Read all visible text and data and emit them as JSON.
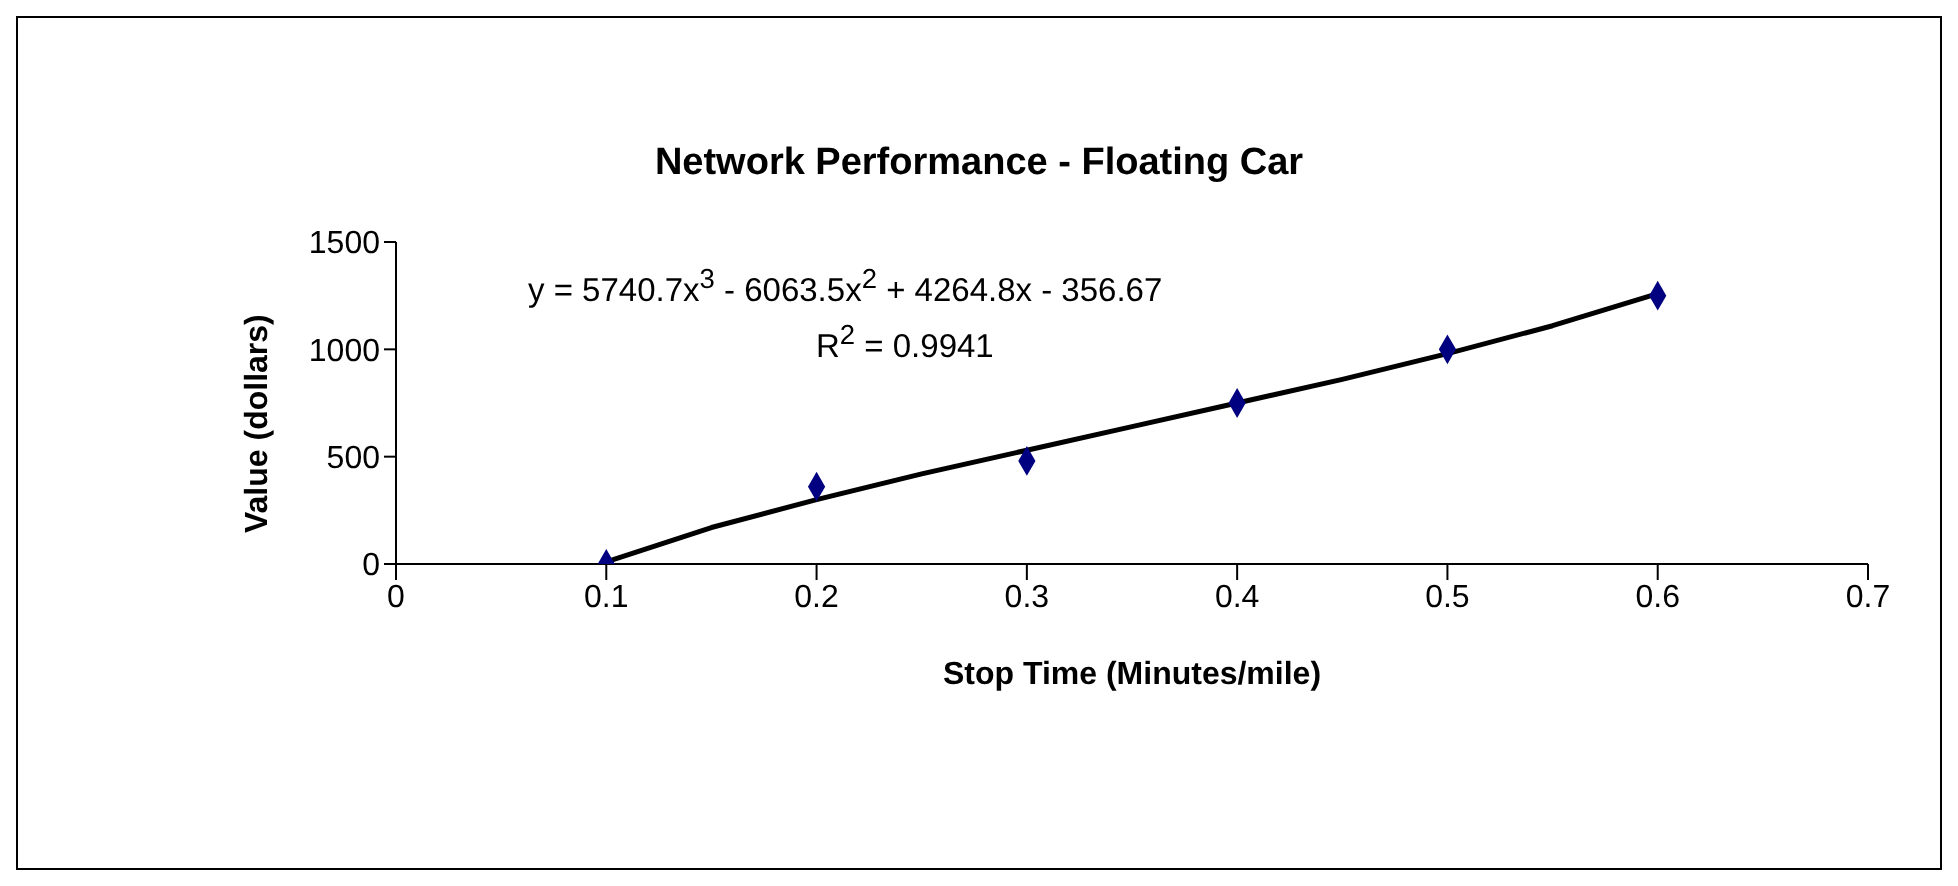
{
  "chart_data": {
    "type": "scatter",
    "title": "Network Performance - Floating Car",
    "xlabel": "Stop Time (Minutes/mile)",
    "ylabel": "Value (dollars)",
    "annotations": [
      "y = 5740.7x$^{3}$ - 6063.5x$^{2}$ + 4264.8x - 356.67",
      "R$^{2}$ = 0.9941"
    ],
    "series": [
      {
        "marker": "diamond",
        "color": "#000080",
        "x": [
          0.1,
          0.2,
          0.3,
          0.4,
          0.5,
          0.6
        ],
        "values": [
          0,
          360,
          480,
          750,
          1000,
          1250
        ]
      },
      {
        "type": "line",
        "marker": "none",
        "color": "#000000",
        "x": [
          0.1,
          0.15,
          0.2,
          0.25,
          0.3,
          0.35,
          0.4,
          0.45,
          0.5,
          0.55,
          0.6
        ],
        "values": [
          10,
          170,
          300,
          420,
          530,
          640,
          750,
          860,
          980,
          1110,
          1260
        ]
      }
    ],
    "xlim": [
      0,
      0.7
    ],
    "xticks": [
      0,
      0.1,
      0.2,
      0.3,
      0.4,
      0.5,
      0.6,
      0.7
    ],
    "ylim": [
      0,
      1500
    ],
    "yticks": [
      0,
      500,
      1000,
      1500
    ]
  }
}
